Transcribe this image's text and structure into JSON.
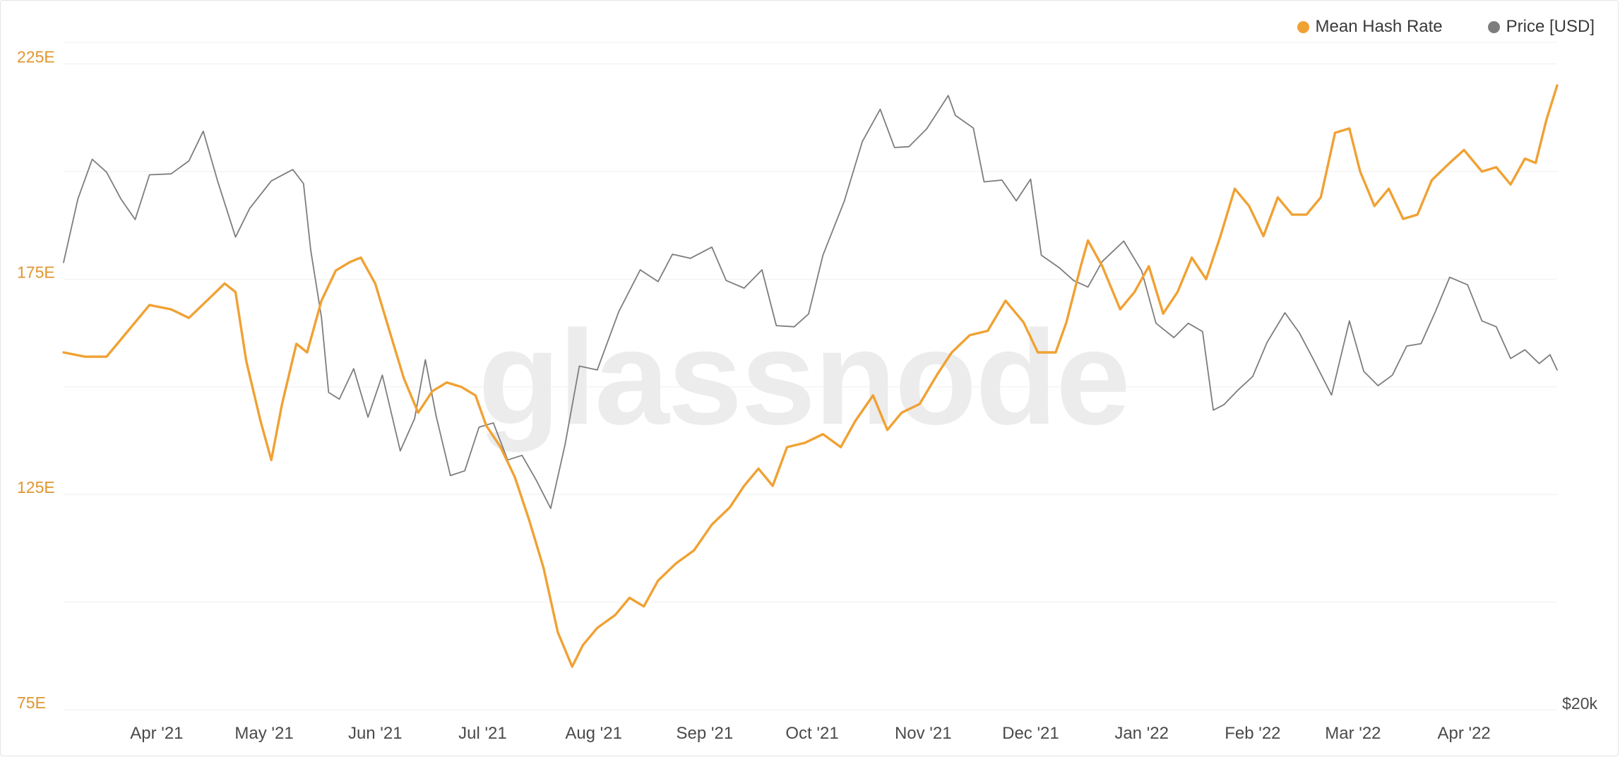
{
  "watermark": "glassnode",
  "legend": [
    {
      "label": "Mean Hash Rate",
      "color": "#f0a133"
    },
    {
      "label": "Price [USD]",
      "color": "#7d7d7d"
    }
  ],
  "chart_data": {
    "type": "line",
    "y_left": {
      "ticks": [
        75,
        125,
        175,
        225
      ],
      "tick_labels": [
        "75E",
        "125E",
        "175E",
        "225E"
      ],
      "range": [
        75,
        230
      ]
    },
    "y_right": {
      "scale": "log",
      "tick_labels": [
        "$20k"
      ],
      "tick_values": [
        20000
      ],
      "range": [
        20000,
        75000
      ]
    },
    "x_axis": {
      "type": "date",
      "range": [
        "2021-03-06",
        "2022-04-27"
      ],
      "tick_labels": [
        "Apr '21",
        "May '21",
        "Jun '21",
        "Jul '21",
        "Aug '21",
        "Sep '21",
        "Oct '21",
        "Nov '21",
        "Dec '21",
        "Jan '22",
        "Feb '22",
        "Mar '22",
        "Apr '22"
      ],
      "tick_dates": [
        "2021-04-01",
        "2021-05-01",
        "2021-06-01",
        "2021-07-01",
        "2021-08-01",
        "2021-09-01",
        "2021-10-01",
        "2021-11-01",
        "2021-12-01",
        "2022-01-01",
        "2022-02-01",
        "2022-03-01",
        "2022-04-01"
      ]
    },
    "grid": true,
    "legend_position": "top-right",
    "series": [
      {
        "name": "Mean Hash Rate",
        "axis": "left",
        "color": "#f0a133",
        "points": [
          [
            "2021-03-06",
            158
          ],
          [
            "2021-03-12",
            157
          ],
          [
            "2021-03-18",
            157
          ],
          [
            "2021-03-24",
            163
          ],
          [
            "2021-03-30",
            169
          ],
          [
            "2021-04-05",
            168
          ],
          [
            "2021-04-10",
            166
          ],
          [
            "2021-04-15",
            170
          ],
          [
            "2021-04-20",
            174
          ],
          [
            "2021-04-23",
            172
          ],
          [
            "2021-04-26",
            156
          ],
          [
            "2021-04-30",
            142
          ],
          [
            "2021-05-03",
            133
          ],
          [
            "2021-05-06",
            146
          ],
          [
            "2021-05-10",
            160
          ],
          [
            "2021-05-13",
            158
          ],
          [
            "2021-05-17",
            170
          ],
          [
            "2021-05-21",
            177
          ],
          [
            "2021-05-25",
            179
          ],
          [
            "2021-05-28",
            180
          ],
          [
            "2021-06-01",
            174
          ],
          [
            "2021-06-05",
            163
          ],
          [
            "2021-06-09",
            152
          ],
          [
            "2021-06-13",
            144
          ],
          [
            "2021-06-17",
            149
          ],
          [
            "2021-06-21",
            151
          ],
          [
            "2021-06-25",
            150
          ],
          [
            "2021-06-29",
            148
          ],
          [
            "2021-07-02",
            141
          ],
          [
            "2021-07-06",
            136
          ],
          [
            "2021-07-10",
            129
          ],
          [
            "2021-07-14",
            119
          ],
          [
            "2021-07-18",
            108
          ],
          [
            "2021-07-22",
            93
          ],
          [
            "2021-07-26",
            85
          ],
          [
            "2021-07-29",
            90
          ],
          [
            "2021-08-02",
            94
          ],
          [
            "2021-08-07",
            97
          ],
          [
            "2021-08-11",
            101
          ],
          [
            "2021-08-15",
            99
          ],
          [
            "2021-08-19",
            105
          ],
          [
            "2021-08-24",
            109
          ],
          [
            "2021-08-29",
            112
          ],
          [
            "2021-09-03",
            118
          ],
          [
            "2021-09-08",
            122
          ],
          [
            "2021-09-12",
            127
          ],
          [
            "2021-09-16",
            131
          ],
          [
            "2021-09-20",
            127
          ],
          [
            "2021-09-24",
            136
          ],
          [
            "2021-09-29",
            137
          ],
          [
            "2021-10-04",
            139
          ],
          [
            "2021-10-09",
            136
          ],
          [
            "2021-10-13",
            142
          ],
          [
            "2021-10-18",
            148
          ],
          [
            "2021-10-22",
            140
          ],
          [
            "2021-10-26",
            144
          ],
          [
            "2021-10-31",
            146
          ],
          [
            "2021-11-05",
            153
          ],
          [
            "2021-11-09",
            158
          ],
          [
            "2021-11-14",
            162
          ],
          [
            "2021-11-19",
            163
          ],
          [
            "2021-11-24",
            170
          ],
          [
            "2021-11-29",
            165
          ],
          [
            "2021-12-03",
            158
          ],
          [
            "2021-12-08",
            158
          ],
          [
            "2021-12-11",
            165
          ],
          [
            "2021-12-15",
            178
          ],
          [
            "2021-12-17",
            184
          ],
          [
            "2021-12-21",
            178
          ],
          [
            "2021-12-26",
            168
          ],
          [
            "2021-12-30",
            172
          ],
          [
            "2022-01-03",
            178
          ],
          [
            "2022-01-07",
            167
          ],
          [
            "2022-01-11",
            172
          ],
          [
            "2022-01-15",
            180
          ],
          [
            "2022-01-19",
            175
          ],
          [
            "2022-01-23",
            185
          ],
          [
            "2022-01-27",
            196
          ],
          [
            "2022-01-31",
            192
          ],
          [
            "2022-02-04",
            185
          ],
          [
            "2022-02-08",
            194
          ],
          [
            "2022-02-12",
            190
          ],
          [
            "2022-02-16",
            190
          ],
          [
            "2022-02-20",
            194
          ],
          [
            "2022-02-24",
            209
          ],
          [
            "2022-02-28",
            210
          ],
          [
            "2022-03-03",
            200
          ],
          [
            "2022-03-07",
            192
          ],
          [
            "2022-03-11",
            196
          ],
          [
            "2022-03-15",
            189
          ],
          [
            "2022-03-19",
            190
          ],
          [
            "2022-03-23",
            198
          ],
          [
            "2022-03-28",
            202
          ],
          [
            "2022-04-01",
            205
          ],
          [
            "2022-04-06",
            200
          ],
          [
            "2022-04-10",
            201
          ],
          [
            "2022-04-14",
            197
          ],
          [
            "2022-04-18",
            203
          ],
          [
            "2022-04-21",
            202
          ],
          [
            "2022-04-24",
            212
          ],
          [
            "2022-04-27",
            220
          ]
        ]
      },
      {
        "name": "Price [USD]",
        "axis": "right",
        "color": "#7d7d7d",
        "points": [
          [
            "2021-03-06",
            48500
          ],
          [
            "2021-03-10",
            55000
          ],
          [
            "2021-03-14",
            59500
          ],
          [
            "2021-03-18",
            58000
          ],
          [
            "2021-03-22",
            55000
          ],
          [
            "2021-03-26",
            52800
          ],
          [
            "2021-03-30",
            57700
          ],
          [
            "2021-04-05",
            57800
          ],
          [
            "2021-04-10",
            59300
          ],
          [
            "2021-04-14",
            62900
          ],
          [
            "2021-04-18",
            57000
          ],
          [
            "2021-04-23",
            51000
          ],
          [
            "2021-04-27",
            54000
          ],
          [
            "2021-05-03",
            57000
          ],
          [
            "2021-05-09",
            58300
          ],
          [
            "2021-05-12",
            56700
          ],
          [
            "2021-05-14",
            49700
          ],
          [
            "2021-05-17",
            43500
          ],
          [
            "2021-05-19",
            37500
          ],
          [
            "2021-05-22",
            37000
          ],
          [
            "2021-05-26",
            39300
          ],
          [
            "2021-05-30",
            35700
          ],
          [
            "2021-06-03",
            38800
          ],
          [
            "2021-06-08",
            33400
          ],
          [
            "2021-06-12",
            35600
          ],
          [
            "2021-06-15",
            40000
          ],
          [
            "2021-06-18",
            35800
          ],
          [
            "2021-06-22",
            31800
          ],
          [
            "2021-06-26",
            32100
          ],
          [
            "2021-06-30",
            35000
          ],
          [
            "2021-07-04",
            35300
          ],
          [
            "2021-07-08",
            32800
          ],
          [
            "2021-07-12",
            33100
          ],
          [
            "2021-07-16",
            31500
          ],
          [
            "2021-07-20",
            29800
          ],
          [
            "2021-07-24",
            33800
          ],
          [
            "2021-07-28",
            39500
          ],
          [
            "2021-08-02",
            39200
          ],
          [
            "2021-08-08",
            44000
          ],
          [
            "2021-08-14",
            47800
          ],
          [
            "2021-08-19",
            46700
          ],
          [
            "2021-08-23",
            49300
          ],
          [
            "2021-08-28",
            48900
          ],
          [
            "2021-09-03",
            50000
          ],
          [
            "2021-09-07",
            46800
          ],
          [
            "2021-09-12",
            46100
          ],
          [
            "2021-09-17",
            47800
          ],
          [
            "2021-09-21",
            42800
          ],
          [
            "2021-09-26",
            42700
          ],
          [
            "2021-09-30",
            43800
          ],
          [
            "2021-10-04",
            49200
          ],
          [
            "2021-10-10",
            54800
          ],
          [
            "2021-10-15",
            61600
          ],
          [
            "2021-10-20",
            65700
          ],
          [
            "2021-10-24",
            60900
          ],
          [
            "2021-10-28",
            61000
          ],
          [
            "2021-11-02",
            63200
          ],
          [
            "2021-11-08",
            67500
          ],
          [
            "2021-11-10",
            64900
          ],
          [
            "2021-11-15",
            63300
          ],
          [
            "2021-11-18",
            56900
          ],
          [
            "2021-11-23",
            57100
          ],
          [
            "2021-11-27",
            54800
          ],
          [
            "2021-12-01",
            57200
          ],
          [
            "2021-12-04",
            49200
          ],
          [
            "2021-12-09",
            48000
          ],
          [
            "2021-12-13",
            46800
          ],
          [
            "2021-12-17",
            46200
          ],
          [
            "2021-12-21",
            48600
          ],
          [
            "2021-12-27",
            50600
          ],
          [
            "2022-01-01",
            47700
          ],
          [
            "2022-01-05",
            43000
          ],
          [
            "2022-01-10",
            41800
          ],
          [
            "2022-01-14",
            43000
          ],
          [
            "2022-01-18",
            42300
          ],
          [
            "2022-01-21",
            36200
          ],
          [
            "2022-01-24",
            36600
          ],
          [
            "2022-01-28",
            37700
          ],
          [
            "2022-02-01",
            38700
          ],
          [
            "2022-02-05",
            41400
          ],
          [
            "2022-02-10",
            43900
          ],
          [
            "2022-02-14",
            42200
          ],
          [
            "2022-02-18",
            40000
          ],
          [
            "2022-02-23",
            37300
          ],
          [
            "2022-02-28",
            43200
          ],
          [
            "2022-03-04",
            39100
          ],
          [
            "2022-03-08",
            38000
          ],
          [
            "2022-03-12",
            38800
          ],
          [
            "2022-03-16",
            41100
          ],
          [
            "2022-03-20",
            41300
          ],
          [
            "2022-03-24",
            44000
          ],
          [
            "2022-03-28",
            47100
          ],
          [
            "2022-04-02",
            46400
          ],
          [
            "2022-04-06",
            43200
          ],
          [
            "2022-04-10",
            42700
          ],
          [
            "2022-04-14",
            40100
          ],
          [
            "2022-04-18",
            40800
          ],
          [
            "2022-04-22",
            39700
          ],
          [
            "2022-04-25",
            40400
          ],
          [
            "2022-04-27",
            39200
          ]
        ]
      }
    ]
  }
}
